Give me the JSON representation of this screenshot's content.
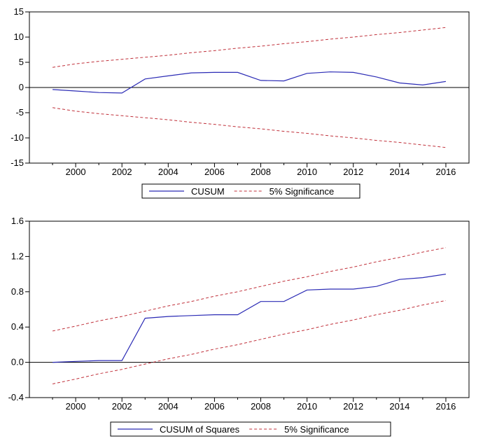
{
  "chart_data": [
    {
      "type": "line",
      "x": [
        1999,
        2000,
        2001,
        2002,
        2003,
        2004,
        2005,
        2006,
        2007,
        2008,
        2009,
        2010,
        2011,
        2012,
        2013,
        2014,
        2015,
        2016
      ],
      "x_ticks": [
        "2000",
        "2002",
        "2004",
        "2006",
        "2008",
        "2010",
        "2012",
        "2014",
        "2016"
      ],
      "y_ticks": [
        "15",
        "10",
        "5",
        "0",
        "-5",
        "-10",
        "-15"
      ],
      "ylim": [
        -15,
        15
      ],
      "xlim": [
        1998,
        2017
      ],
      "grid": false,
      "legend_position": "bottom-center",
      "colors": {
        "main": "#2b2bb5",
        "bound": "#c0303a",
        "zero": "#000000"
      },
      "series": [
        {
          "name": "CUSUM",
          "values": [
            -0.4,
            -0.7,
            -1.0,
            -1.1,
            1.7,
            2.3,
            2.9,
            3.0,
            3.0,
            1.4,
            1.3,
            2.8,
            3.1,
            3.0,
            2.1,
            0.9,
            0.5,
            1.2
          ]
        },
        {
          "name": "5% Significance",
          "values": [
            4.0,
            4.7,
            5.2,
            5.6,
            6.0,
            6.4,
            6.9,
            7.3,
            7.8,
            8.2,
            8.7,
            9.1,
            9.6,
            10.0,
            10.5,
            10.9,
            11.4,
            11.9
          ]
        },
        {
          "name": "",
          "values": [
            -4.0,
            -4.7,
            -5.2,
            -5.6,
            -6.0,
            -6.4,
            -6.9,
            -7.3,
            -7.8,
            -8.2,
            -8.7,
            -9.1,
            -9.6,
            -10.0,
            -10.5,
            -10.9,
            -11.4,
            -11.9
          ]
        }
      ]
    },
    {
      "type": "line",
      "x": [
        1999,
        2000,
        2001,
        2002,
        2003,
        2004,
        2005,
        2006,
        2007,
        2008,
        2009,
        2010,
        2011,
        2012,
        2013,
        2014,
        2015,
        2016
      ],
      "x_ticks": [
        "2000",
        "2002",
        "2004",
        "2006",
        "2008",
        "2010",
        "2012",
        "2014",
        "2016"
      ],
      "y_ticks": [
        "1.6",
        "1.2",
        "0.8",
        "0.4",
        "0.0",
        "-0.4"
      ],
      "ylim": [
        -0.4,
        1.6
      ],
      "xlim": [
        1998,
        2017
      ],
      "grid": false,
      "legend_position": "bottom-center",
      "colors": {
        "main": "#2b2bb5",
        "bound": "#c0303a",
        "zero": "#000000"
      },
      "series": [
        {
          "name": "CUSUM of Squares",
          "values": [
            0.0,
            0.01,
            0.02,
            0.02,
            0.5,
            0.52,
            0.53,
            0.54,
            0.54,
            0.69,
            0.69,
            0.82,
            0.83,
            0.83,
            0.86,
            0.94,
            0.96,
            1.0
          ]
        },
        {
          "name": "5% Significance",
          "values": [
            0.355,
            0.41,
            0.47,
            0.52,
            0.58,
            0.64,
            0.69,
            0.75,
            0.8,
            0.86,
            0.92,
            0.97,
            1.03,
            1.08,
            1.14,
            1.19,
            1.25,
            1.3
          ]
        },
        {
          "name": "",
          "values": [
            -0.245,
            -0.19,
            -0.13,
            -0.08,
            -0.02,
            0.04,
            0.09,
            0.15,
            0.2,
            0.26,
            0.32,
            0.37,
            0.43,
            0.48,
            0.54,
            0.59,
            0.65,
            0.7
          ]
        }
      ]
    }
  ]
}
